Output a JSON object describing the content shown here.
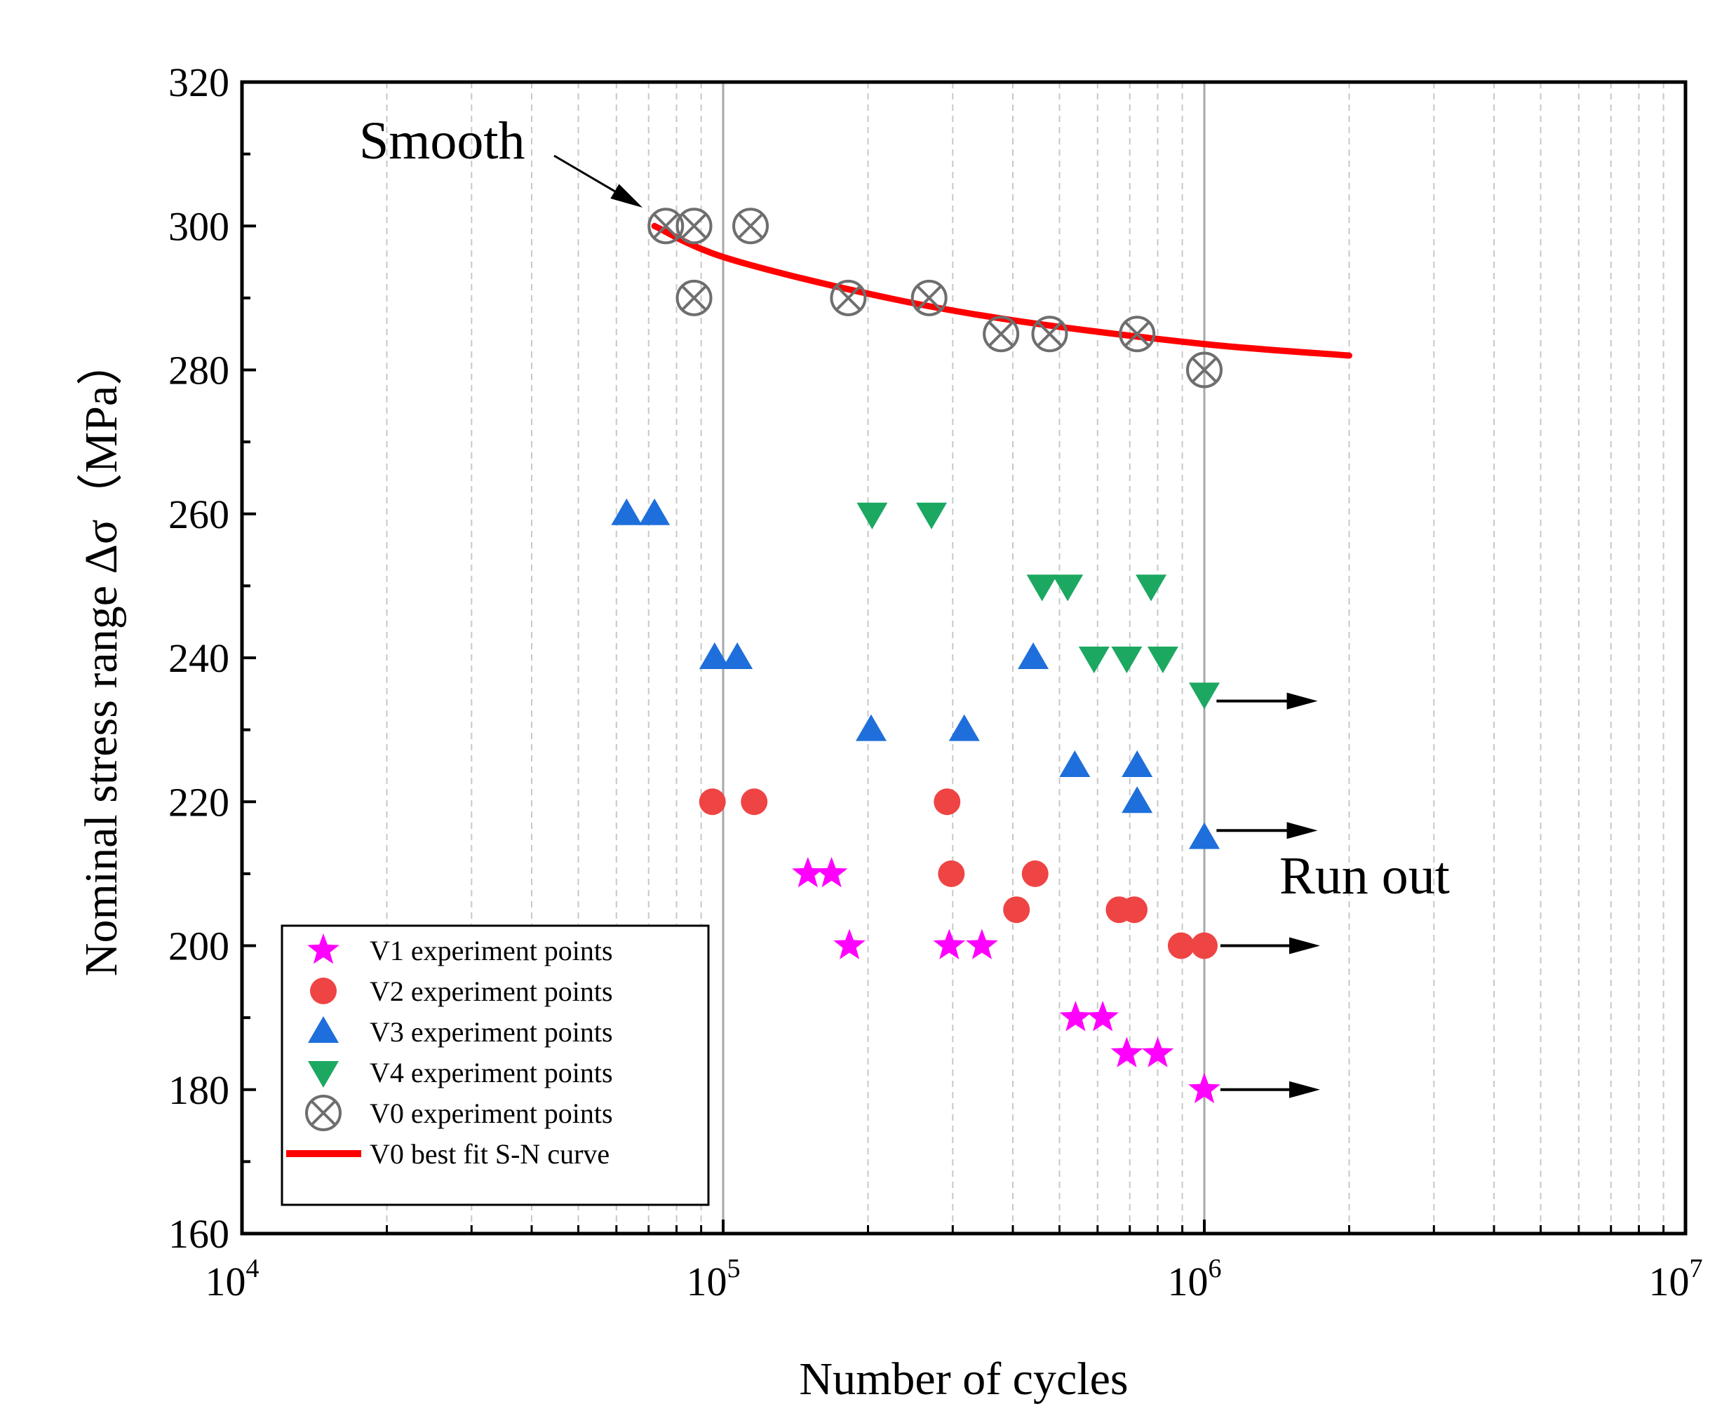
{
  "chart_data": {
    "type": "scatter",
    "xlabel": "Number of cycles",
    "ylabel": "Nominal stress range Δσ（MPa）",
    "x_scale": "log",
    "xlim": [
      10000,
      10000000
    ],
    "ylim": [
      160,
      320
    ],
    "x_ticks": [
      {
        "base": "10",
        "exp": "4",
        "value": 10000
      },
      {
        "base": "10",
        "exp": "5",
        "value": 100000
      },
      {
        "base": "10",
        "exp": "6",
        "value": 1000000
      },
      {
        "base": "10",
        "exp": "7",
        "value": 10000000
      }
    ],
    "y_ticks": [
      "160",
      "180",
      "200",
      "220",
      "240",
      "260",
      "280",
      "300",
      "320"
    ],
    "grid": "vertical dashed (log minor), solid at major decades",
    "series": [
      {
        "name": "V1 experiment points",
        "marker": "star",
        "color": "#FF00FF",
        "points": [
          [
            150000,
            210
          ],
          [
            168000,
            210
          ],
          [
            183000,
            200
          ],
          [
            295000,
            200
          ],
          [
            345000,
            200
          ],
          [
            540000,
            190
          ],
          [
            615000,
            190
          ],
          [
            690000,
            185
          ],
          [
            800000,
            185
          ],
          [
            1000000,
            180
          ]
        ]
      },
      {
        "name": "V2 experiment points",
        "marker": "circle",
        "color": "#EF4444",
        "points": [
          [
            95000,
            220
          ],
          [
            116000,
            220
          ],
          [
            292000,
            220
          ],
          [
            298000,
            210
          ],
          [
            445000,
            210
          ],
          [
            407000,
            205
          ],
          [
            665000,
            205
          ],
          [
            715000,
            205
          ],
          [
            895000,
            200
          ],
          [
            1000000,
            200
          ]
        ]
      },
      {
        "name": "V3 experiment points",
        "marker": "triangle-up",
        "color": "#1E6FDB",
        "points": [
          [
            63000,
            260
          ],
          [
            72000,
            260
          ],
          [
            96000,
            240
          ],
          [
            107000,
            240
          ],
          [
            203000,
            230
          ],
          [
            317000,
            230
          ],
          [
            441000,
            240
          ],
          [
            538000,
            225
          ],
          [
            725000,
            225
          ],
          [
            725000,
            220
          ],
          [
            1000000,
            215
          ]
        ]
      },
      {
        "name": "V4 experiment points",
        "marker": "triangle-down",
        "color": "#1DA862",
        "points": [
          [
            204000,
            260
          ],
          [
            271000,
            260
          ],
          [
            460000,
            250
          ],
          [
            520000,
            250
          ],
          [
            775000,
            250
          ],
          [
            590000,
            240
          ],
          [
            690000,
            240
          ],
          [
            820000,
            240
          ],
          [
            1000000,
            235
          ]
        ]
      },
      {
        "name": "V0 experiment points",
        "marker": "circle-x",
        "color": "#6E6E6E",
        "points": [
          [
            76000,
            300
          ],
          [
            87000,
            300
          ],
          [
            114000,
            300
          ],
          [
            87000,
            290
          ],
          [
            182000,
            290
          ],
          [
            268000,
            290
          ],
          [
            378000,
            285
          ],
          [
            477000,
            285
          ],
          [
            725000,
            285
          ],
          [
            1000000,
            280
          ]
        ]
      },
      {
        "name": "V0 best fit S-N curve",
        "marker": "line",
        "color": "#FF0000",
        "points": [
          [
            72000,
            300
          ],
          [
            100000,
            295.7
          ],
          [
            200000,
            290.6
          ],
          [
            400000,
            286.9
          ],
          [
            1000000,
            283.6
          ],
          [
            2000000,
            282
          ]
        ]
      }
    ],
    "annotations": [
      {
        "text": "Smooth",
        "x": 26000,
        "y": 306,
        "arrow_to": [
          68000,
          301
        ]
      },
      {
        "text": "Run out",
        "x": 1450000,
        "y": 209
      }
    ],
    "runout_arrows": [
      {
        "y": 234,
        "x_from": 1060000,
        "x_to": 1720000
      },
      {
        "y": 216,
        "x_from": 1060000,
        "x_to": 1720000
      },
      {
        "y": 200,
        "x_from": 1080000,
        "x_to": 1740000
      },
      {
        "y": 180,
        "x_from": 1080000,
        "x_to": 1740000
      }
    ],
    "legend": {
      "position": "bottom-left",
      "entries": [
        "V1 experiment points",
        "V2 experiment points",
        "V3 experiment points",
        "V4 experiment points",
        "V0 experiment points",
        "V0 best fit S-N curve"
      ]
    }
  }
}
